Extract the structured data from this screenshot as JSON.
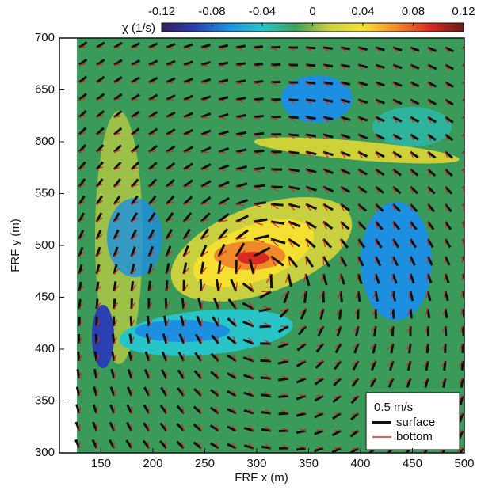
{
  "chart_data": {
    "type": "contour",
    "xlabel": "FRF x (m)",
    "ylabel": "FRF y (m)",
    "xlim": [
      110,
      500
    ],
    "xticks": [
      150,
      200,
      250,
      300,
      350,
      400,
      450,
      500
    ],
    "ylim": [
      300,
      700
    ],
    "yticks": [
      300,
      350,
      400,
      450,
      500,
      550,
      600,
      650,
      700
    ],
    "colorbar": {
      "label": "χ (1/s)",
      "lim": [
        -0.12,
        0.12
      ],
      "ticks": [
        -0.12,
        -0.08,
        -0.04,
        0,
        0.04,
        0.08,
        0.12
      ],
      "colormap": [
        "#35205a",
        "#2a3fb0",
        "#1d8fe0",
        "#27c4c8",
        "#3ea05a",
        "#c8d040",
        "#f4e030",
        "#f08a28",
        "#d82a20",
        "#6a1a1a"
      ]
    },
    "legend": {
      "scale": "0.5 m/s",
      "entries": [
        {
          "name": "surface",
          "color": "#111111"
        },
        {
          "name": "bottom",
          "color": "#e02020"
        }
      ]
    }
  }
}
